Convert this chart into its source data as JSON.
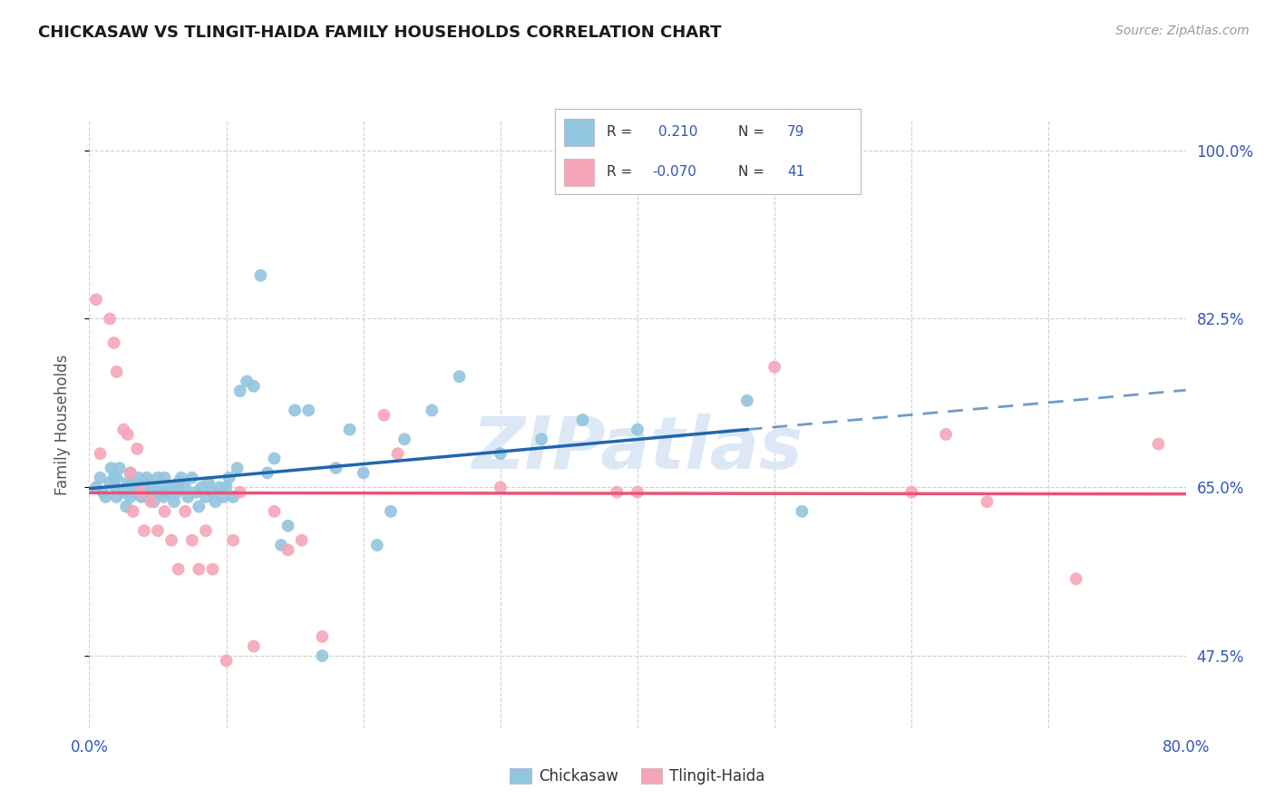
{
  "title": "CHICKASAW VS TLINGIT-HAIDA FAMILY HOUSEHOLDS CORRELATION CHART",
  "source": "Source: ZipAtlas.com",
  "ylabel_label": "Family Households",
  "x_min": 0.0,
  "x_max": 0.8,
  "y_min": 0.4,
  "y_max": 1.03,
  "y_ticks": [
    0.475,
    0.65,
    0.825,
    1.0
  ],
  "y_tick_labels": [
    "47.5%",
    "65.0%",
    "82.5%",
    "100.0%"
  ],
  "x_ticks": [
    0.0,
    0.1,
    0.2,
    0.3,
    0.4,
    0.5,
    0.6,
    0.7,
    0.8
  ],
  "chickasaw_R": 0.21,
  "chickasaw_N": 79,
  "tlingit_R": -0.07,
  "tlingit_N": 41,
  "chickasaw_color": "#92c5de",
  "tlingit_color": "#f4a6b8",
  "trend_chickasaw_color": "#2166ac",
  "trend_tlingit_color": "#e8547a",
  "background_color": "#ffffff",
  "grid_color": "#d0d0d0",
  "title_color": "#1a1a1a",
  "axis_tick_color": "#3355bb",
  "source_color": "#999999",
  "watermark_color": "#dce8f5",
  "chickasaw_x": [
    0.005,
    0.008,
    0.01,
    0.012,
    0.015,
    0.016,
    0.018,
    0.019,
    0.02,
    0.02,
    0.022,
    0.025,
    0.027,
    0.028,
    0.03,
    0.03,
    0.032,
    0.033,
    0.035,
    0.036,
    0.038,
    0.04,
    0.04,
    0.042,
    0.043,
    0.045,
    0.047,
    0.05,
    0.05,
    0.052,
    0.054,
    0.055,
    0.057,
    0.06,
    0.062,
    0.064,
    0.065,
    0.067,
    0.07,
    0.072,
    0.075,
    0.078,
    0.08,
    0.082,
    0.085,
    0.087,
    0.09,
    0.092,
    0.095,
    0.098,
    0.1,
    0.102,
    0.105,
    0.108,
    0.11,
    0.115,
    0.12,
    0.125,
    0.13,
    0.135,
    0.14,
    0.145,
    0.15,
    0.16,
    0.17,
    0.18,
    0.19,
    0.2,
    0.21,
    0.22,
    0.23,
    0.25,
    0.27,
    0.3,
    0.33,
    0.36,
    0.4,
    0.48,
    0.52
  ],
  "chickasaw_y": [
    0.65,
    0.66,
    0.645,
    0.64,
    0.655,
    0.67,
    0.66,
    0.65,
    0.64,
    0.66,
    0.67,
    0.645,
    0.63,
    0.655,
    0.64,
    0.665,
    0.655,
    0.65,
    0.645,
    0.66,
    0.64,
    0.645,
    0.655,
    0.66,
    0.64,
    0.65,
    0.635,
    0.645,
    0.66,
    0.65,
    0.64,
    0.66,
    0.645,
    0.65,
    0.635,
    0.645,
    0.655,
    0.66,
    0.65,
    0.64,
    0.66,
    0.645,
    0.63,
    0.65,
    0.64,
    0.655,
    0.645,
    0.635,
    0.65,
    0.64,
    0.65,
    0.66,
    0.64,
    0.67,
    0.75,
    0.76,
    0.755,
    0.87,
    0.665,
    0.68,
    0.59,
    0.61,
    0.73,
    0.73,
    0.475,
    0.67,
    0.71,
    0.665,
    0.59,
    0.625,
    0.7,
    0.73,
    0.765,
    0.685,
    0.7,
    0.72,
    0.71,
    0.74,
    0.625
  ],
  "tlingit_x": [
    0.005,
    0.008,
    0.015,
    0.018,
    0.02,
    0.025,
    0.028,
    0.03,
    0.032,
    0.035,
    0.038,
    0.04,
    0.045,
    0.05,
    0.055,
    0.06,
    0.065,
    0.07,
    0.075,
    0.08,
    0.085,
    0.09,
    0.1,
    0.105,
    0.11,
    0.12,
    0.135,
    0.145,
    0.155,
    0.17,
    0.215,
    0.225,
    0.3,
    0.385,
    0.4,
    0.5,
    0.6,
    0.625,
    0.655,
    0.72,
    0.78
  ],
  "tlingit_y": [
    0.845,
    0.685,
    0.825,
    0.8,
    0.77,
    0.71,
    0.705,
    0.665,
    0.625,
    0.69,
    0.645,
    0.605,
    0.635,
    0.605,
    0.625,
    0.595,
    0.565,
    0.625,
    0.595,
    0.565,
    0.605,
    0.565,
    0.47,
    0.595,
    0.645,
    0.485,
    0.625,
    0.585,
    0.595,
    0.495,
    0.725,
    0.685,
    0.65,
    0.645,
    0.645,
    0.775,
    0.645,
    0.705,
    0.635,
    0.555,
    0.695
  ],
  "trend_chick_x0": 0.0,
  "trend_chick_x_solid_end": 0.48,
  "trend_chick_x_end": 0.8,
  "trend_tlin_x0": 0.0,
  "trend_tlin_x_end": 0.8
}
